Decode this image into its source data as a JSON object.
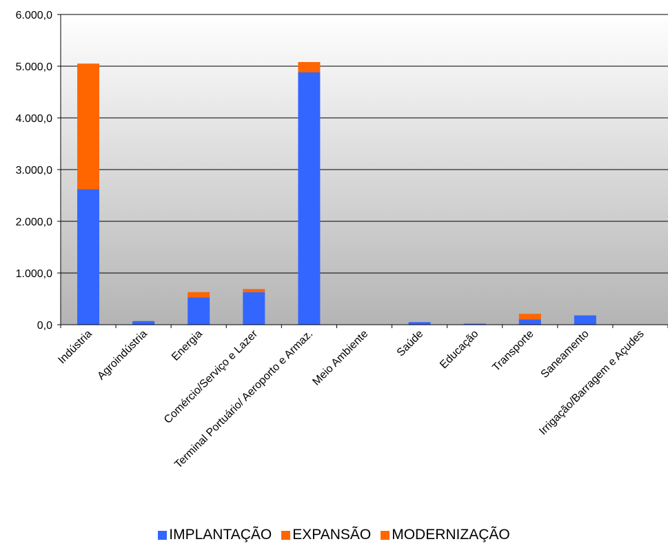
{
  "chart_data": {
    "type": "bar",
    "stacked": true,
    "categories": [
      "Indústria",
      "Agroindústria",
      "Energia",
      "Comércio/Serviço e Lazer",
      "Terminal Portuário/ Aeroporto e Armaz.",
      "Meio Ambiente",
      "Saúde",
      "Educação",
      "Transporte",
      "Saneamento",
      "Irrigação/Barragem e Açudes"
    ],
    "series": [
      {
        "name": "IMPLANTAÇÃO",
        "color": "#3366ff",
        "values": [
          2620,
          70,
          530,
          630,
          4880,
          0,
          50,
          20,
          100,
          180,
          0
        ]
      },
      {
        "name": "EXPANSÃO",
        "color": "#ff6600",
        "values": [
          2430,
          0,
          100,
          60,
          200,
          0,
          0,
          0,
          110,
          0,
          0
        ]
      },
      {
        "name": "MODERNIZAÇÃO",
        "color": "#ff6600",
        "values": [
          0,
          0,
          0,
          0,
          0,
          0,
          0,
          0,
          0,
          0,
          0
        ]
      }
    ],
    "yticks": [
      "0,0",
      "1.000,0",
      "2.000,0",
      "3.000,0",
      "4.000,0",
      "5.000,0",
      "6.000,0"
    ],
    "ylim": [
      0,
      6000
    ],
    "grid": true,
    "legend_position": "bottom"
  }
}
